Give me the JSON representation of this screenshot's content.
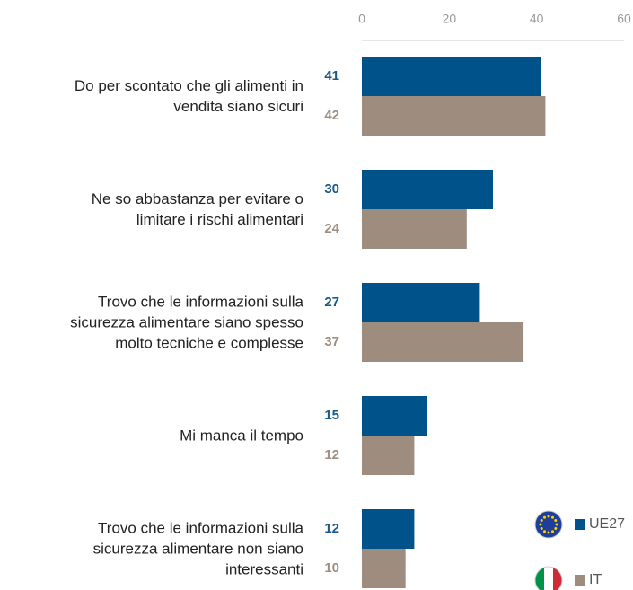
{
  "chart_data": {
    "type": "hbar",
    "categories": [
      "Do per scontato che gli alimenti in\nvendita siano sicuri",
      "Ne so abbastanza per evitare o\nlimitare i rischi alimentari",
      "Trovo che le informazioni sulla\nsicurezza alimentare siano spesso\nmolto tecniche e complesse",
      "Mi manca il tempo",
      "Trovo che le informazioni sulla\nsicurezza alimentare non siano\ninteressanti"
    ],
    "series": [
      {
        "name": "UE27",
        "color": "#00538a",
        "values": [
          41,
          30,
          27,
          15,
          12
        ]
      },
      {
        "name": "IT",
        "color": "#9e8c7f",
        "values": [
          42,
          24,
          37,
          12,
          10
        ]
      }
    ],
    "xlim": [
      0,
      60
    ],
    "xticks": [
      0,
      20,
      40,
      60
    ],
    "legend": "bottom-right"
  }
}
